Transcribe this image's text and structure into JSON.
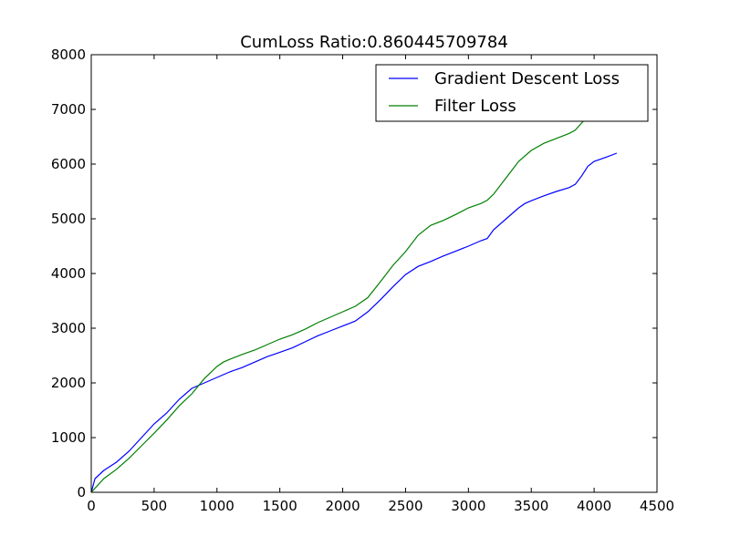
{
  "chart_data": {
    "type": "line",
    "title": "CumLoss Ratio:0.860445709784",
    "xlabel": "",
    "ylabel": "",
    "xlim": [
      0,
      4500
    ],
    "ylim": [
      0,
      8000
    ],
    "x_ticks": [
      0,
      500,
      1000,
      1500,
      2000,
      2500,
      3000,
      3500,
      4000,
      4500
    ],
    "y_ticks": [
      0,
      1000,
      2000,
      3000,
      4000,
      5000,
      6000,
      7000,
      8000
    ],
    "x_tick_labels": [
      "0",
      "500",
      "1000",
      "1500",
      "2000",
      "2500",
      "3000",
      "3500",
      "4000",
      "4500"
    ],
    "y_tick_labels": [
      "0",
      "1000",
      "2000",
      "3000",
      "4000",
      "5000",
      "6000",
      "7000",
      "8000"
    ],
    "grid": false,
    "legend_position": "top-right",
    "series": [
      {
        "name": "Gradient Descent Loss",
        "color": "#0000ff",
        "points": [
          [
            0,
            0
          ],
          [
            30,
            250
          ],
          [
            100,
            400
          ],
          [
            200,
            550
          ],
          [
            300,
            750
          ],
          [
            400,
            1000
          ],
          [
            500,
            1250
          ],
          [
            600,
            1450
          ],
          [
            700,
            1700
          ],
          [
            800,
            1900
          ],
          [
            900,
            2000
          ],
          [
            1000,
            2100
          ],
          [
            1100,
            2200
          ],
          [
            1200,
            2280
          ],
          [
            1300,
            2380
          ],
          [
            1400,
            2480
          ],
          [
            1500,
            2560
          ],
          [
            1600,
            2640
          ],
          [
            1700,
            2750
          ],
          [
            1800,
            2860
          ],
          [
            1900,
            2950
          ],
          [
            2000,
            3040
          ],
          [
            2100,
            3130
          ],
          [
            2200,
            3300
          ],
          [
            2300,
            3520
          ],
          [
            2400,
            3760
          ],
          [
            2500,
            3980
          ],
          [
            2600,
            4130
          ],
          [
            2700,
            4220
          ],
          [
            2800,
            4320
          ],
          [
            2900,
            4410
          ],
          [
            3000,
            4500
          ],
          [
            3100,
            4600
          ],
          [
            3150,
            4640
          ],
          [
            3200,
            4800
          ],
          [
            3300,
            5000
          ],
          [
            3400,
            5200
          ],
          [
            3450,
            5280
          ],
          [
            3500,
            5330
          ],
          [
            3600,
            5420
          ],
          [
            3700,
            5500
          ],
          [
            3800,
            5570
          ],
          [
            3850,
            5630
          ],
          [
            3900,
            5780
          ],
          [
            3950,
            5960
          ],
          [
            4000,
            6050
          ],
          [
            4100,
            6130
          ],
          [
            4180,
            6200
          ]
        ]
      },
      {
        "name": "Filter Loss",
        "color": "#008000",
        "points": [
          [
            0,
            0
          ],
          [
            100,
            250
          ],
          [
            200,
            420
          ],
          [
            300,
            620
          ],
          [
            400,
            850
          ],
          [
            500,
            1080
          ],
          [
            600,
            1320
          ],
          [
            700,
            1580
          ],
          [
            800,
            1800
          ],
          [
            900,
            2080
          ],
          [
            1000,
            2300
          ],
          [
            1050,
            2380
          ],
          [
            1100,
            2430
          ],
          [
            1200,
            2520
          ],
          [
            1300,
            2600
          ],
          [
            1400,
            2700
          ],
          [
            1500,
            2800
          ],
          [
            1600,
            2880
          ],
          [
            1700,
            2980
          ],
          [
            1800,
            3100
          ],
          [
            1900,
            3200
          ],
          [
            2000,
            3300
          ],
          [
            2100,
            3400
          ],
          [
            2200,
            3560
          ],
          [
            2300,
            3850
          ],
          [
            2400,
            4150
          ],
          [
            2500,
            4400
          ],
          [
            2600,
            4700
          ],
          [
            2700,
            4880
          ],
          [
            2800,
            4970
          ],
          [
            2900,
            5080
          ],
          [
            3000,
            5200
          ],
          [
            3100,
            5280
          ],
          [
            3150,
            5340
          ],
          [
            3200,
            5450
          ],
          [
            3300,
            5750
          ],
          [
            3400,
            6050
          ],
          [
            3500,
            6250
          ],
          [
            3600,
            6380
          ],
          [
            3700,
            6470
          ],
          [
            3800,
            6560
          ],
          [
            3850,
            6620
          ],
          [
            3900,
            6750
          ],
          [
            3950,
            6870
          ],
          [
            4000,
            6950
          ]
        ]
      }
    ]
  }
}
